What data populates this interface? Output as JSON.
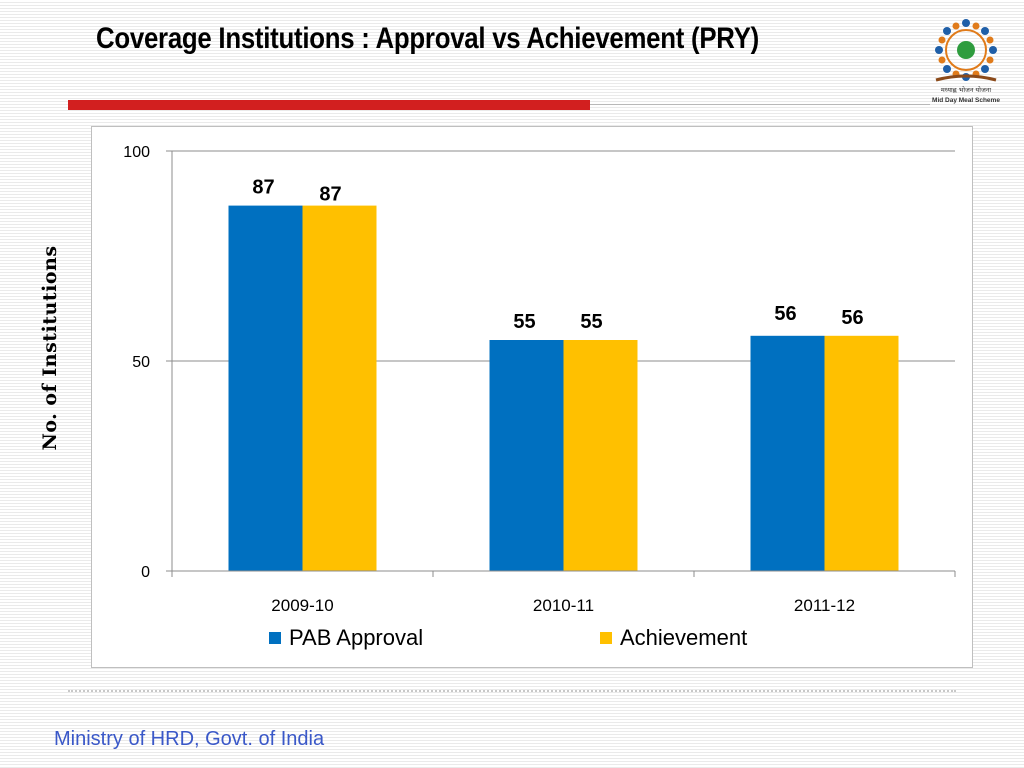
{
  "slide": {
    "title": "Coverage Institutions : Approval vs Achievement (PRY)",
    "footer": "Ministry of HRD, Govt. of India",
    "logo_text_line1": "मध्याह्न भोजन योजना",
    "logo_text_line2": "Mid Day Meal Scheme"
  },
  "colors": {
    "accent_red": "#d21f1f",
    "series_1": "#0070c0",
    "series_2": "#ffc000",
    "footer_text": "#3a58c8"
  },
  "chart_data": {
    "type": "bar",
    "title": "",
    "xlabel": "",
    "ylabel": "No. of Institutions",
    "ylim": [
      0,
      100
    ],
    "yticks": [
      0,
      50,
      100
    ],
    "grid": true,
    "legend_position": "bottom",
    "categories": [
      "2009-10",
      "2010-11",
      "2011-12"
    ],
    "series": [
      {
        "name": "PAB Approval",
        "values": [
          87,
          55,
          56
        ],
        "color": "#0070c0"
      },
      {
        "name": "Achievement",
        "values": [
          87,
          55,
          56
        ],
        "color": "#ffc000"
      }
    ]
  }
}
